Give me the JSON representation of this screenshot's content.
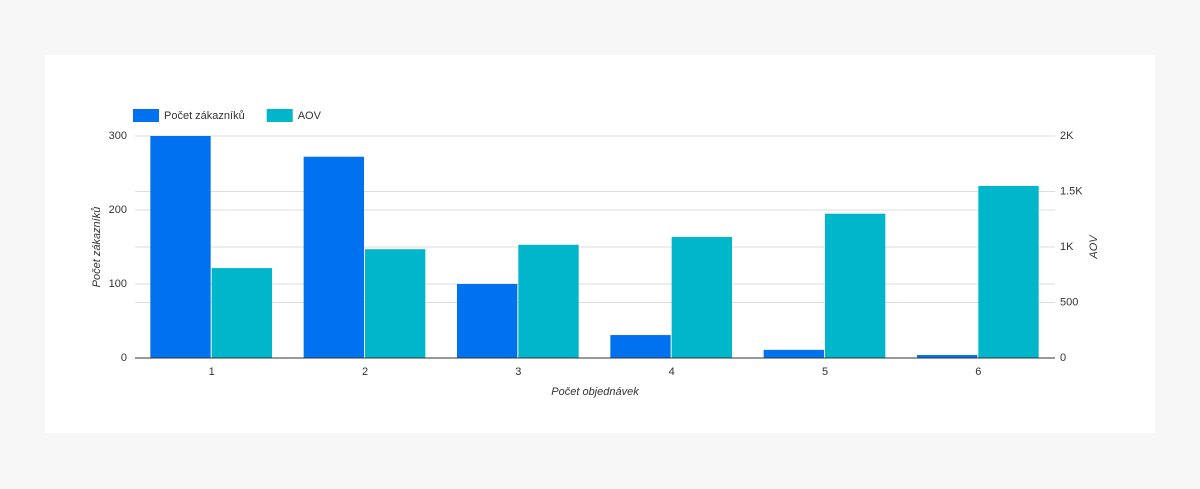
{
  "chart_data": {
    "type": "bar",
    "categories": [
      "1",
      "2",
      "3",
      "4",
      "5",
      "6"
    ],
    "series": [
      {
        "name": "Počet zákazníků",
        "color": "#0072f0",
        "values": [
          300,
          272,
          100,
          31,
          11,
          4
        ]
      },
      {
        "name": "AOV",
        "color": "#00b6cb",
        "axis": "y2",
        "values": [
          810,
          980,
          1020,
          1090,
          1300,
          1550
        ]
      }
    ],
    "ylabel": "Počet zákazníků",
    "y2label": "AOV",
    "xlabel": "Počet objednávek",
    "ylim": [
      0,
      300
    ],
    "yticks": [
      0,
      100,
      200,
      300
    ],
    "y2lim": [
      0,
      2000
    ],
    "y2ticks": [
      0,
      500,
      {
        "value": 1000,
        "label": "1K"
      },
      {
        "value": 1500,
        "label": "1.5K"
      },
      {
        "value": 2000,
        "label": "2K"
      }
    ],
    "grid": true,
    "legend": "top-left"
  }
}
